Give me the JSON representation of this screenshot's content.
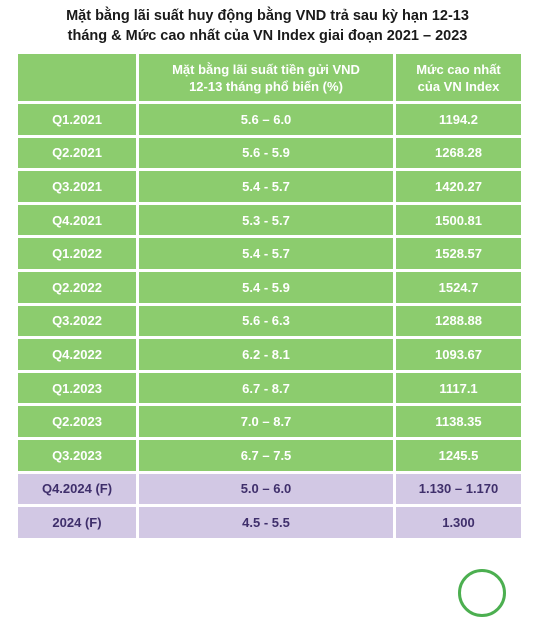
{
  "title_line1": "Mặt bằng lãi suất huy động bằng VND trả sau kỳ hạn 12-13",
  "title_line2": "tháng & Mức cao nhất của VN Index giai đoạn 2021 – 2023",
  "colors": {
    "header_bg": "#8ccc6e",
    "row_bg": "#8ccc6e",
    "forecast_bg": "#d2c8e4",
    "forecast_text": "#3f2f6b"
  },
  "chart_data": {
    "type": "table",
    "title": "Mặt bằng lãi suất huy động bằng VND trả sau kỳ hạn 12-13 tháng & Mức cao nhất của VN Index giai đoạn 2021 – 2023",
    "columns": [
      "",
      "Mặt bằng lãi suất tiền gửi VND 12-13 tháng phổ biến (%)",
      "Mức cao nhất của VN Index"
    ],
    "header": [
      "",
      "Mặt bằng lãi suất tiền gửi VND\n12-13 tháng phổ biến (%)",
      "Mức cao nhất\ncủa VN Index"
    ],
    "rows": [
      [
        "Q1.2021",
        "5.6 – 6.0",
        "1194.2"
      ],
      [
        "Q2.2021",
        "5.6 - 5.9",
        "1268.28"
      ],
      [
        "Q3.2021",
        "5.4 - 5.7",
        "1420.27"
      ],
      [
        "Q4.2021",
        "5.3 - 5.7",
        "1500.81"
      ],
      [
        "Q1.2022",
        "5.4 - 5.7",
        "1528.57"
      ],
      [
        "Q2.2022",
        "5.4 - 5.9",
        "1524.7"
      ],
      [
        "Q3.2022",
        "5.6 - 6.3",
        "1288.88"
      ],
      [
        "Q4.2022",
        "6.2 - 8.1",
        "1093.67"
      ],
      [
        "Q1.2023",
        "6.7 - 8.7",
        "1117.1"
      ],
      [
        "Q2.2023",
        "7.0 – 8.7",
        "1138.35"
      ],
      [
        "Q3.2023",
        "6.7 – 7.5",
        "1245.5"
      ],
      [
        "Q4.2024 (F)",
        "5.0 – 6.0",
        "1.130 – 1.170"
      ],
      [
        "2024 (F)",
        "4.5 - 5.5",
        "1.300"
      ]
    ],
    "forecast_rows": [
      11,
      12
    ]
  }
}
